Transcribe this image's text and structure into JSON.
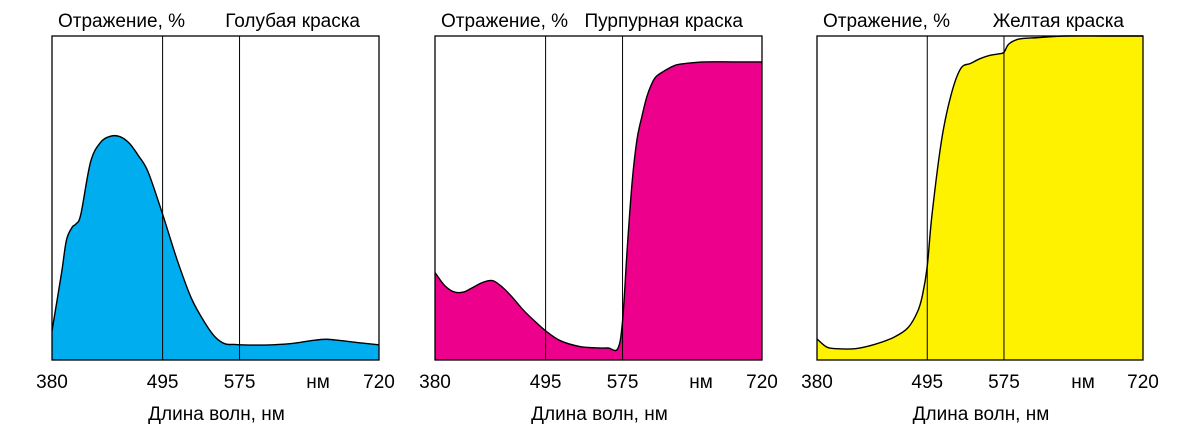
{
  "chart_data": [
    {
      "type": "area",
      "title": "Голубая краска",
      "ylabel": "Отражение, %",
      "xlabel": "Длина волн, нм",
      "xlim": [
        380,
        720
      ],
      "ylim": [
        0,
        100
      ],
      "x_ticks": [
        "380",
        "495",
        "575",
        "720"
      ],
      "unit_label": "нм",
      "color": "#00AEEF",
      "series": [
        {
          "x": [
            380,
            390,
            395,
            401,
            405,
            410,
            420,
            430,
            440,
            450,
            460,
            470,
            480,
            495,
            510,
            525,
            540,
            550,
            560,
            570,
            575,
            590,
            610,
            630,
            650,
            665,
            680,
            700,
            720
          ],
          "y": [
            9,
            27,
            37,
            41,
            42,
            45,
            61,
            67,
            69,
            69,
            67,
            63,
            58,
            45,
            31,
            19,
            11,
            7,
            5,
            4.8,
            4.7,
            4.6,
            4.7,
            5.1,
            6,
            6.4,
            6,
            5.3,
            4.7
          ]
        }
      ]
    },
    {
      "type": "area",
      "title": "Пурпурная краска",
      "ylabel": "Отражение, %",
      "xlabel": "Длина волн, нм",
      "xlim": [
        380,
        720
      ],
      "ylim": [
        0,
        100
      ],
      "x_ticks": [
        "380",
        "495",
        "575",
        "720"
      ],
      "unit_label": "нм",
      "color": "#EC008C",
      "series": [
        {
          "x": [
            380,
            390,
            400,
            410,
            420,
            430,
            440,
            450,
            460,
            470,
            480,
            495,
            510,
            530,
            550,
            560,
            570,
            575,
            580,
            585,
            590,
            595,
            600,
            605,
            610,
            620,
            630,
            640,
            660,
            690,
            720
          ],
          "y": [
            27,
            23,
            21,
            21,
            22.5,
            24,
            24.5,
            22.5,
            19.5,
            16,
            13,
            9,
            6,
            4.2,
            3.7,
            3.7,
            3.5,
            12,
            35,
            55,
            68,
            75,
            81,
            85,
            87.5,
            89.5,
            91,
            91.5,
            92,
            92,
            92
          ]
        }
      ]
    },
    {
      "type": "area",
      "title": "Желтая краска",
      "ylabel": "Отражение, %",
      "xlabel": "Длина волн, нм",
      "xlim": [
        380,
        720
      ],
      "ylim": [
        0,
        100
      ],
      "x_ticks": [
        "380",
        "495",
        "575",
        "720"
      ],
      "unit_label": "нм",
      "color": "#FFF200",
      "series": [
        {
          "x": [
            380,
            390,
            400,
            420,
            440,
            460,
            475,
            485,
            490,
            495,
            500,
            510,
            520,
            530,
            540,
            550,
            560,
            570,
            575,
            580,
            590,
            610,
            640,
            680,
            720
          ],
          "y": [
            6.5,
            4,
            3.5,
            3.5,
            4.8,
            7,
            10,
            15,
            20,
            29,
            45,
            68,
            82,
            90,
            91.5,
            93,
            94,
            94.5,
            95,
            97.5,
            99,
            99.5,
            100,
            100,
            100
          ]
        }
      ]
    }
  ]
}
